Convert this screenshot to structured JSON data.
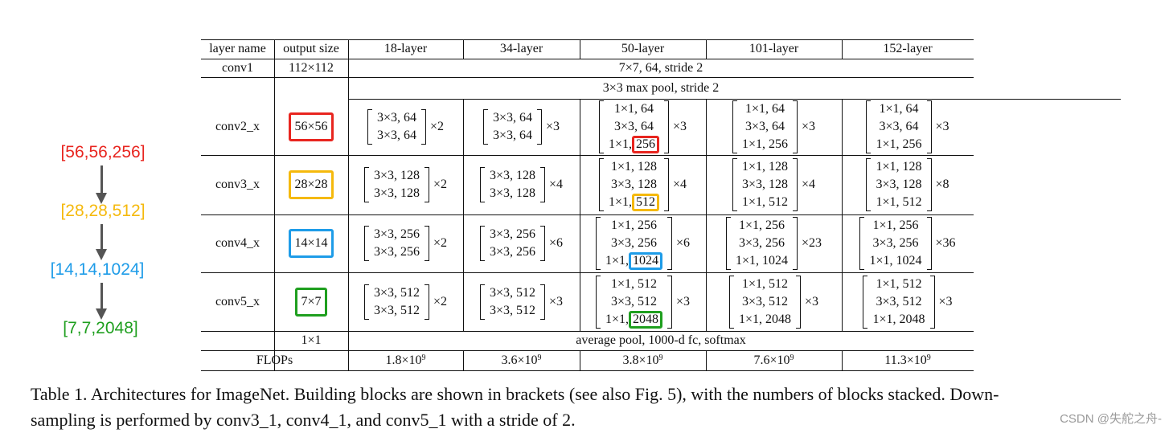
{
  "colors": {
    "red": "#e8251f",
    "yellow": "#f5b90c",
    "blue": "#1e9ce8",
    "green": "#1f9f1f",
    "arrow": "#555555"
  },
  "diagram": {
    "labels": [
      "[56,56,256]",
      "[28,28,512]",
      "[14,14,1024]",
      "[7,7,2048]"
    ],
    "arrow_icon": "down-arrow-icon"
  },
  "table": {
    "headers": [
      "layer name",
      "output size",
      "18-layer",
      "34-layer",
      "50-layer",
      "101-layer",
      "152-layer"
    ],
    "conv1": {
      "name": "conv1",
      "size": "112×112",
      "spec": "7×7, 64, stride 2"
    },
    "maxpool": "3×3 max pool, stride 2",
    "stages": [
      {
        "name": "conv2_x",
        "size": "56×56",
        "b18": [
          "3×3, 64",
          "3×3, 64"
        ],
        "m18": "×2",
        "b34": [
          "3×3, 64",
          "3×3, 64"
        ],
        "m34": "×3",
        "b50": [
          "1×1, 64",
          "3×3, 64"
        ],
        "b50_last_pre": "1×1,",
        "b50_last_hl": "256",
        "m50": "×3",
        "b101": [
          "1×1, 64",
          "3×3, 64",
          "1×1, 256"
        ],
        "m101": "×3",
        "b152": [
          "1×1, 64",
          "3×3, 64",
          "1×1, 256"
        ],
        "m152": "×3"
      },
      {
        "name": "conv3_x",
        "size": "28×28",
        "b18": [
          "3×3, 128",
          "3×3, 128"
        ],
        "m18": "×2",
        "b34": [
          "3×3, 128",
          "3×3, 128"
        ],
        "m34": "×4",
        "b50": [
          "1×1, 128",
          "3×3, 128"
        ],
        "b50_last_pre": "1×1,",
        "b50_last_hl": "512",
        "m50": "×4",
        "b101": [
          "1×1, 128",
          "3×3, 128",
          "1×1, 512"
        ],
        "m101": "×4",
        "b152": [
          "1×1, 128",
          "3×3, 128",
          "1×1, 512"
        ],
        "m152": "×8"
      },
      {
        "name": "conv4_x",
        "size": "14×14",
        "b18": [
          "3×3, 256",
          "3×3, 256"
        ],
        "m18": "×2",
        "b34": [
          "3×3, 256",
          "3×3, 256"
        ],
        "m34": "×6",
        "b50": [
          "1×1, 256",
          "3×3, 256"
        ],
        "b50_last_pre": "1×1,",
        "b50_last_hl": "1024",
        "m50": "×6",
        "b101": [
          "1×1, 256",
          "3×3, 256",
          "1×1, 1024"
        ],
        "m101": "×23",
        "b152": [
          "1×1, 256",
          "3×3, 256",
          "1×1, 1024"
        ],
        "m152": "×36"
      },
      {
        "name": "conv5_x",
        "size": "7×7",
        "b18": [
          "3×3, 512",
          "3×3, 512"
        ],
        "m18": "×2",
        "b34": [
          "3×3, 512",
          "3×3, 512"
        ],
        "m34": "×3",
        "b50": [
          "1×1, 512",
          "3×3, 512"
        ],
        "b50_last_pre": "1×1,",
        "b50_last_hl": "2048",
        "m50": "×3",
        "b101": [
          "1×1, 512",
          "3×3, 512",
          "1×1, 2048"
        ],
        "m101": "×3",
        "b152": [
          "1×1, 512",
          "3×3, 512",
          "1×1, 2048"
        ],
        "m152": "×3"
      }
    ],
    "final": {
      "size": "1×1",
      "spec": "average pool, 1000-d fc, softmax"
    },
    "flops": {
      "label": "FLOPs",
      "base": "×10",
      "exp": "9",
      "values": [
        "1.8",
        "3.6",
        "3.8",
        "7.6",
        "11.3"
      ]
    }
  },
  "caption": {
    "line1": "Table 1. Architectures for ImageNet. Building blocks are shown in brackets (see also Fig. 5), with the numbers of blocks stacked. Down-",
    "line2": "sampling is performed by conv3_1, conv4_1, and conv5_1 with a stride of 2."
  },
  "watermark": "CSDN @失舵之舟-"
}
